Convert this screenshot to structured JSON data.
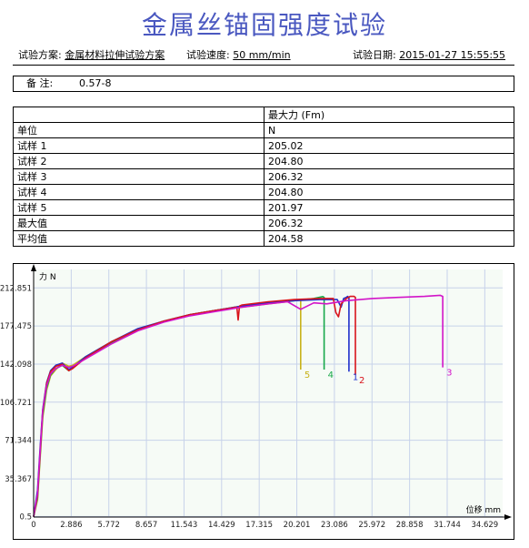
{
  "report": {
    "title": "金属丝锚固强度试验",
    "scheme_label": "试验方案:",
    "scheme_value": "金属材料拉伸试验方案",
    "speed_label": "试验速度:",
    "speed_value": "50 mm/min",
    "date_label": "试验日期:",
    "date_value": "2015-01-27 15:55:55",
    "note_label": "备  注:",
    "note_value": "0.57-8"
  },
  "results_table": {
    "header": [
      "",
      "最大力 (Fm)"
    ],
    "unit_row": [
      "单位",
      "N"
    ],
    "rows": [
      [
        "试样 1",
        "205.02"
      ],
      [
        "试样 2",
        "204.80"
      ],
      [
        "试样 3",
        "206.32"
      ],
      [
        "试样 4",
        "204.80"
      ],
      [
        "试样 5",
        "201.97"
      ],
      [
        "最大值",
        "206.32"
      ],
      [
        "平均值",
        "204.58"
      ]
    ]
  },
  "chart_data": {
    "type": "line",
    "ylabel": "力 N",
    "xlabel": "位移 mm",
    "xlim": [
      0,
      36.0
    ],
    "ylim": [
      0,
      230
    ],
    "x_ticks": [
      0,
      2.886,
      5.772,
      8.657,
      11.543,
      14.429,
      17.315,
      20.201,
      23.086,
      25.972,
      28.858,
      31.744,
      34.629
    ],
    "x_tick_labels": [
      "0",
      "2.886",
      "5.772",
      "8.657",
      "11.543",
      "14.429",
      "17.315",
      "20.201",
      "23.086",
      "25.972",
      "28.858",
      "31.744",
      "34.629"
    ],
    "y_ticks": [
      0.5,
      35.367,
      71.344,
      106.721,
      142.098,
      177.475,
      212.851
    ],
    "y_tick_labels": [
      "0.5",
      "35.367",
      "71.344",
      "106.721",
      "142.098",
      "177.475",
      "212.851"
    ],
    "grid": true,
    "series": [
      {
        "name": "1",
        "color": "#1f2fcc",
        "x": [
          0,
          0.3,
          0.5,
          0.7,
          1.0,
          1.3,
          1.7,
          2.2,
          2.7,
          3.0,
          4.0,
          6.0,
          8.0,
          10.0,
          12.0,
          14.0,
          16.0,
          18.0,
          20.0,
          22.0,
          23.3,
          23.6,
          23.8,
          24.0,
          24.1,
          24.2,
          24.2
        ],
        "y": [
          0.5,
          25,
          65,
          100,
          125,
          136,
          141,
          143,
          137,
          139,
          149,
          163,
          175,
          182,
          188,
          192,
          196,
          199,
          201,
          202,
          202,
          195,
          203,
          204,
          205,
          204,
          135
        ]
      },
      {
        "name": "2",
        "color": "#d9141c",
        "x": [
          0,
          0.3,
          0.5,
          0.7,
          1.0,
          1.3,
          1.7,
          2.2,
          2.7,
          3.0,
          4.0,
          6.0,
          8.0,
          10.0,
          12.0,
          14.0,
          15.6,
          15.7,
          15.8,
          16.0,
          18.0,
          20.0,
          22.0,
          23.0,
          23.2,
          23.4,
          23.6,
          24.0,
          24.3,
          24.6,
          24.7,
          24.7
        ],
        "y": [
          0.5,
          20,
          60,
          98,
          124,
          135,
          140,
          142,
          136,
          138,
          148,
          163,
          174,
          182,
          188,
          192,
          195,
          183,
          196,
          197,
          200,
          202,
          203,
          203,
          190,
          186,
          198,
          203,
          205,
          205,
          204,
          132
        ]
      },
      {
        "name": "3",
        "color": "#d214c8",
        "x": [
          0,
          0.3,
          0.5,
          0.7,
          1.0,
          1.3,
          1.7,
          2.2,
          2.7,
          3.0,
          4.0,
          6.0,
          8.0,
          10.0,
          12.0,
          14.0,
          16.0,
          18.0,
          19.5,
          20.5,
          21.5,
          22.5,
          24.0,
          26.0,
          28.0,
          30.0,
          31.2,
          31.4,
          31.4
        ],
        "y": [
          0.5,
          22,
          62,
          99,
          122,
          133,
          138,
          141,
          139,
          140,
          147,
          161,
          173,
          181,
          187,
          191,
          195,
          198,
          200,
          193,
          199,
          198,
          201,
          203,
          204,
          205,
          206,
          205,
          139
        ]
      },
      {
        "name": "4",
        "color": "#18a84a",
        "x": [
          0,
          0.3,
          0.5,
          0.7,
          1.0,
          1.3,
          1.7,
          2.2,
          2.7,
          3.0,
          4.0,
          6.0,
          8.0,
          10.0,
          12.0,
          14.0,
          16.0,
          18.0,
          20.0,
          21.5,
          22.2,
          22.3,
          22.3
        ],
        "y": [
          0.5,
          18,
          58,
          95,
          120,
          132,
          138,
          141,
          136,
          139,
          148,
          162,
          174,
          182,
          188,
          192,
          196,
          199,
          201,
          203,
          204.8,
          204,
          137
        ]
      },
      {
        "name": "5",
        "color": "#c8b21a",
        "x": [
          0,
          0.3,
          0.5,
          0.7,
          1.0,
          1.3,
          1.7,
          2.2,
          2.7,
          3.0,
          4.0,
          6.0,
          8.0,
          10.0,
          12.0,
          14.0,
          16.0,
          18.0,
          19.5,
          20.4,
          20.5,
          20.5
        ],
        "y": [
          0.5,
          16,
          55,
          92,
          118,
          131,
          137,
          143,
          140,
          141,
          149,
          163,
          174,
          182,
          188,
          192,
          195,
          198,
          200,
          201.97,
          201,
          137
        ]
      }
    ]
  }
}
